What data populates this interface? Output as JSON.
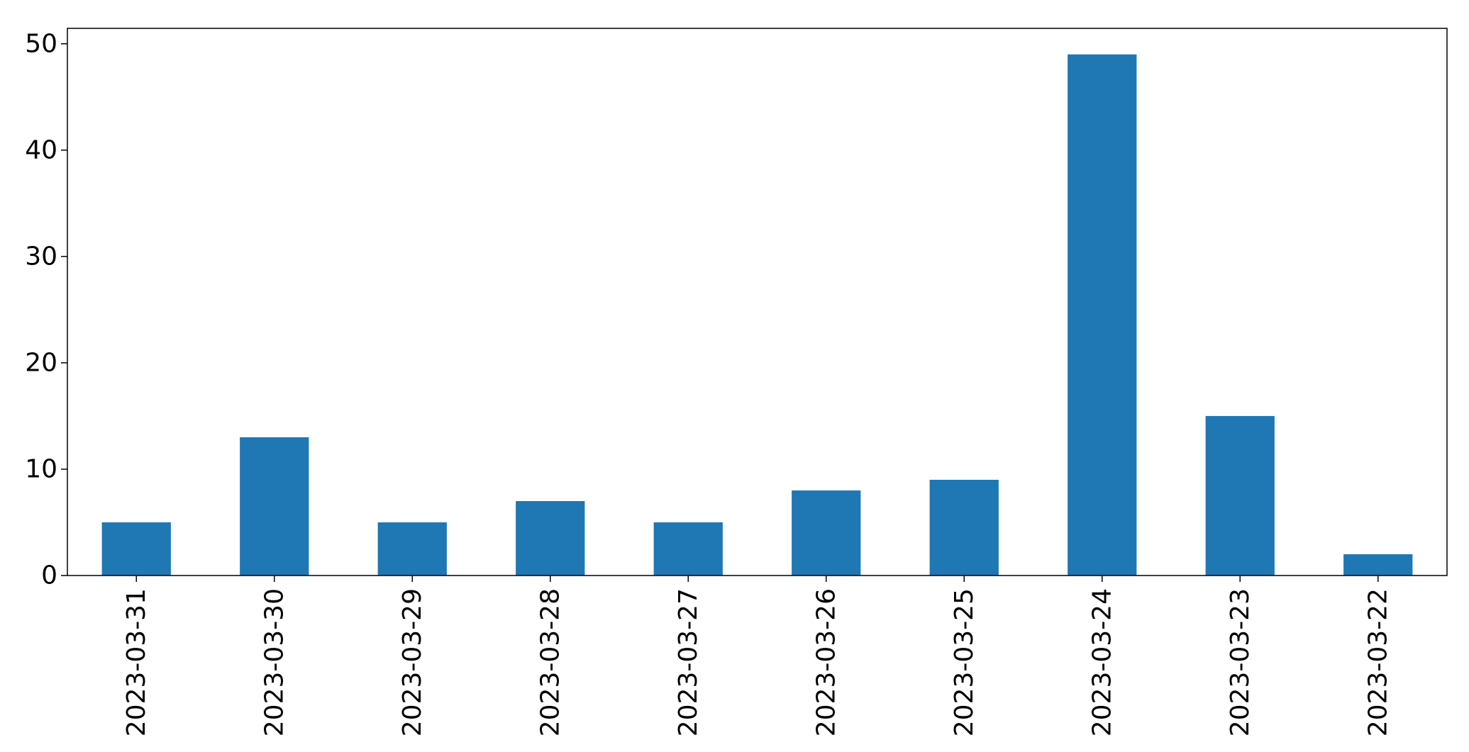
{
  "chart_data": {
    "type": "bar",
    "title": "",
    "xlabel": "",
    "ylabel": "",
    "categories": [
      "2023-03-31",
      "2023-03-30",
      "2023-03-29",
      "2023-03-28",
      "2023-03-27",
      "2023-03-26",
      "2023-03-25",
      "2023-03-24",
      "2023-03-23",
      "2023-03-22"
    ],
    "values": [
      5,
      13,
      5,
      7,
      5,
      8,
      9,
      49,
      15,
      2
    ],
    "ylim": [
      0,
      51.45
    ],
    "yticks": [
      0,
      10,
      20,
      30,
      40,
      50
    ],
    "grid": false,
    "legend": false,
    "bar_color": "#1f77b4"
  }
}
